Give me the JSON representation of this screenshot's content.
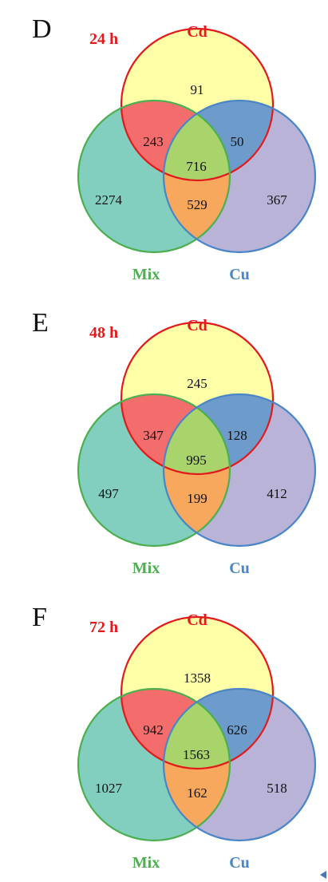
{
  "panels": [
    {
      "letter": "D",
      "time": "24 h",
      "sets": {
        "cd": "Cd",
        "mix": "Mix",
        "cu": "Cu"
      },
      "regions": {
        "cd_only": "91",
        "cd_mix": "243",
        "cd_cu": "50",
        "all": "716",
        "mix_only": "2274",
        "mix_cu": "529",
        "cu_only": "367"
      }
    },
    {
      "letter": "E",
      "time": "48 h",
      "sets": {
        "cd": "Cd",
        "mix": "Mix",
        "cu": "Cu"
      },
      "regions": {
        "cd_only": "245",
        "cd_mix": "347",
        "cd_cu": "128",
        "all": "995",
        "mix_only": "497",
        "mix_cu": "199",
        "cu_only": "412"
      }
    },
    {
      "letter": "F",
      "time": "72 h",
      "sets": {
        "cd": "Cd",
        "mix": "Mix",
        "cu": "Cu"
      },
      "regions": {
        "cd_only": "1358",
        "cd_mix": "942",
        "cd_cu": "626",
        "all": "1563",
        "mix_only": "1027",
        "mix_cu": "162",
        "cu_only": "518"
      }
    }
  ],
  "colors": {
    "cd_fill": "#ffffa8",
    "mix_fill": "#82cfc0",
    "cu_fill": "#b9b3d8",
    "cd_mix_fill": "#f46d6d",
    "cd_cu_fill": "#6d9bcb",
    "mix_cu_fill": "#f7a85c",
    "all_fill": "#a9d46c",
    "cd_stroke": "#e31a1c",
    "mix_stroke": "#4caf50",
    "cu_stroke": "#4a86c6"
  }
}
